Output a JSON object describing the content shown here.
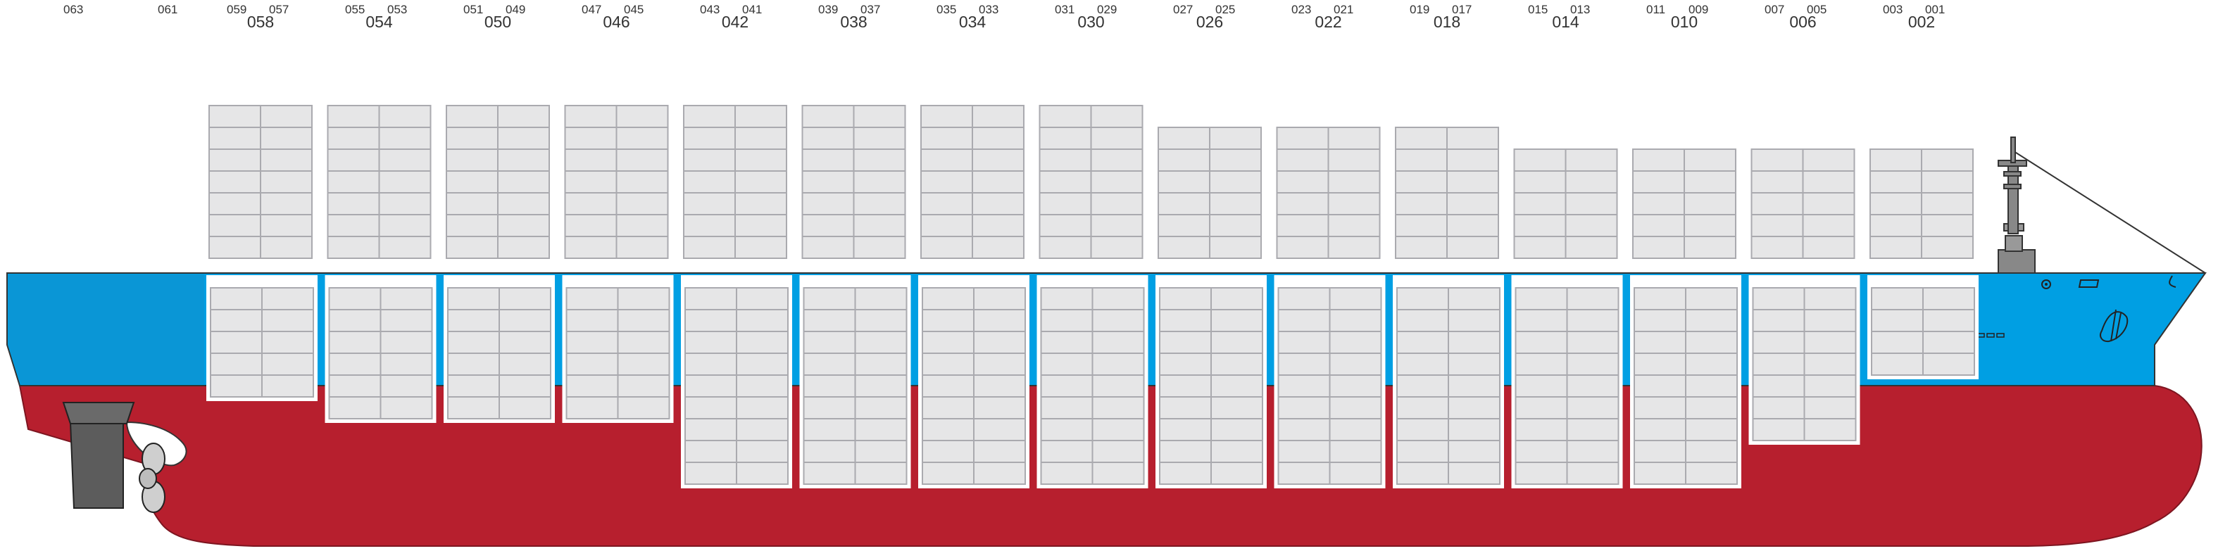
{
  "diagram": {
    "bay_numbers_top": [
      "063",
      "061",
      "059",
      "057",
      "055",
      "053",
      "051",
      "049",
      "047",
      "045",
      "043",
      "041",
      "039",
      "037",
      "035",
      "033",
      "031",
      "029",
      "027",
      "025",
      "023",
      "021",
      "019",
      "017",
      "015",
      "013",
      "011",
      "009",
      "007",
      "005",
      "003",
      "001"
    ],
    "bay_numbers_main": [
      "058",
      "054",
      "050",
      "046",
      "042",
      "038",
      "034",
      "030",
      "026",
      "022",
      "018",
      "014",
      "010",
      "006",
      "002"
    ],
    "deck_tiers": [
      7,
      7,
      7,
      7,
      7,
      7,
      7,
      7,
      6,
      6,
      6,
      5,
      5,
      5,
      5
    ],
    "hold_tiers": [
      5,
      6,
      6,
      6,
      9,
      9,
      9,
      9,
      9,
      9,
      9,
      9,
      9,
      7,
      4
    ],
    "colors": {
      "hull_upper": "#009fe3",
      "hull_upper_aft": "#0a96d6",
      "hull_lower": "#b71f2e",
      "container_fill": "#e6e6e7",
      "container_stroke": "#aaaaaf",
      "rudder": "#5c5c5c",
      "mast": "#888888"
    }
  }
}
